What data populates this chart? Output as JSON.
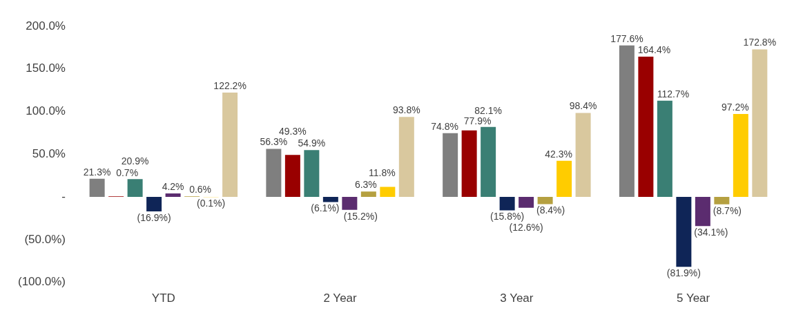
{
  "chart_data": {
    "type": "bar",
    "categories": [
      "YTD",
      "2 Year",
      "3 Year",
      "5 Year"
    ],
    "series": [
      {
        "color": "#7f7f7f",
        "values": [
          21.3,
          56.3,
          74.8,
          177.6
        ],
        "value_labels": [
          "21.3%",
          "56.3%",
          "74.8%",
          "177.6%"
        ]
      },
      {
        "color": "#990000",
        "values": [
          0.7,
          49.3,
          77.9,
          164.4
        ],
        "value_labels": [
          "0.7%",
          "49.3%",
          "77.9%",
          "164.4%"
        ]
      },
      {
        "color": "#3a7f74",
        "values": [
          20.9,
          54.9,
          82.1,
          112.7
        ],
        "value_labels": [
          "20.9%",
          "54.9%",
          "82.1%",
          "112.7%"
        ]
      },
      {
        "color": "#0f2557",
        "values": [
          -16.9,
          -6.1,
          -15.8,
          -81.9
        ],
        "value_labels": [
          "(16.9%)",
          "(6.1%)",
          "(15.8%)",
          "(81.9%)"
        ]
      },
      {
        "color": "#5b2c6f",
        "values": [
          4.2,
          -15.2,
          -12.6,
          -34.1
        ],
        "value_labels": [
          "4.2%",
          "(15.2%)",
          "(12.6%)",
          "(34.1%)"
        ]
      },
      {
        "color": "#b5a040",
        "values": [
          0.6,
          6.3,
          -8.4,
          -8.7
        ],
        "value_labels": [
          "0.6%",
          "6.3%",
          "(8.4%)",
          "(8.7%)"
        ]
      },
      {
        "color": "#ffcc00",
        "values": [
          -0.1,
          11.8,
          42.3,
          97.2
        ],
        "value_labels": [
          "(0.1%)",
          "11.8%",
          "42.3%",
          "97.2%"
        ]
      },
      {
        "color": "#d9c89e",
        "values": [
          122.2,
          93.8,
          98.4,
          172.8
        ],
        "value_labels": [
          "122.2%",
          "93.8%",
          "98.4%",
          "172.8%"
        ]
      }
    ],
    "ylim": [
      -100,
      200
    ],
    "yticks": [
      {
        "value": -100,
        "label": "(100.0%)"
      },
      {
        "value": -50,
        "label": "(50.0%)"
      },
      {
        "value": 0,
        "label": "-"
      },
      {
        "value": 50,
        "label": "50.0%"
      },
      {
        "value": 100,
        "label": "100.0%"
      },
      {
        "value": 150,
        "label": "150.0%"
      },
      {
        "value": 200,
        "label": "200.0%"
      }
    ],
    "grid": false,
    "legend": false
  }
}
